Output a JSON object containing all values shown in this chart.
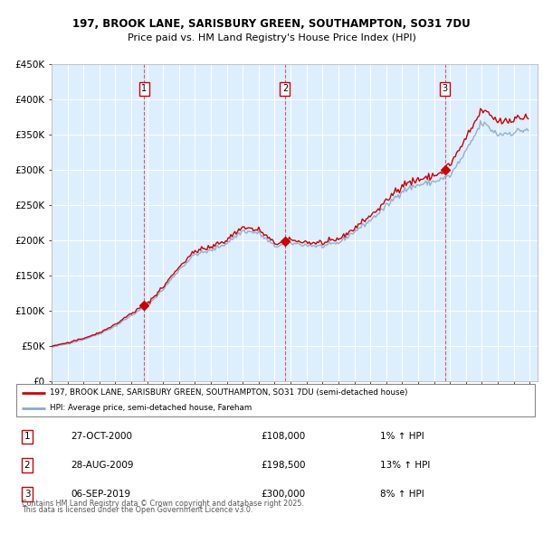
{
  "title1": "197, BROOK LANE, SARISBURY GREEN, SOUTHAMPTON, SO31 7DU",
  "title2": "Price paid vs. HM Land Registry's House Price Index (HPI)",
  "legend_line1": "197, BROOK LANE, SARISBURY GREEN, SOUTHAMPTON, SO31 7DU (semi-detached house)",
  "legend_line2": "HPI: Average price, semi-detached house, Fareham",
  "transactions": [
    {
      "num": 1,
      "date": "27-OCT-2000",
      "price": 108000,
      "hpi_change": "1% ↑ HPI",
      "year": 2000.82
    },
    {
      "num": 2,
      "date": "28-AUG-2009",
      "price": 198500,
      "hpi_change": "13% ↑ HPI",
      "year": 2009.65
    },
    {
      "num": 3,
      "date": "06-SEP-2019",
      "price": 300000,
      "hpi_change": "8% ↑ HPI",
      "year": 2019.68
    }
  ],
  "footer1": "Contains HM Land Registry data © Crown copyright and database right 2025.",
  "footer2": "This data is licensed under the Open Government Licence v3.0.",
  "price_color": "#cc0000",
  "hpi_color": "#88aacc",
  "background_color": "#ddeeff",
  "xlim_start": 1995.0,
  "xlim_end": 2025.5,
  "ylim": [
    0,
    450000
  ],
  "yticks": [
    0,
    50000,
    100000,
    150000,
    200000,
    250000,
    300000,
    350000,
    400000,
    450000
  ],
  "ytick_labels": [
    "£0",
    "£50K",
    "£100K",
    "£150K",
    "£200K",
    "£250K",
    "£300K",
    "£350K",
    "£400K",
    "£450K"
  ]
}
